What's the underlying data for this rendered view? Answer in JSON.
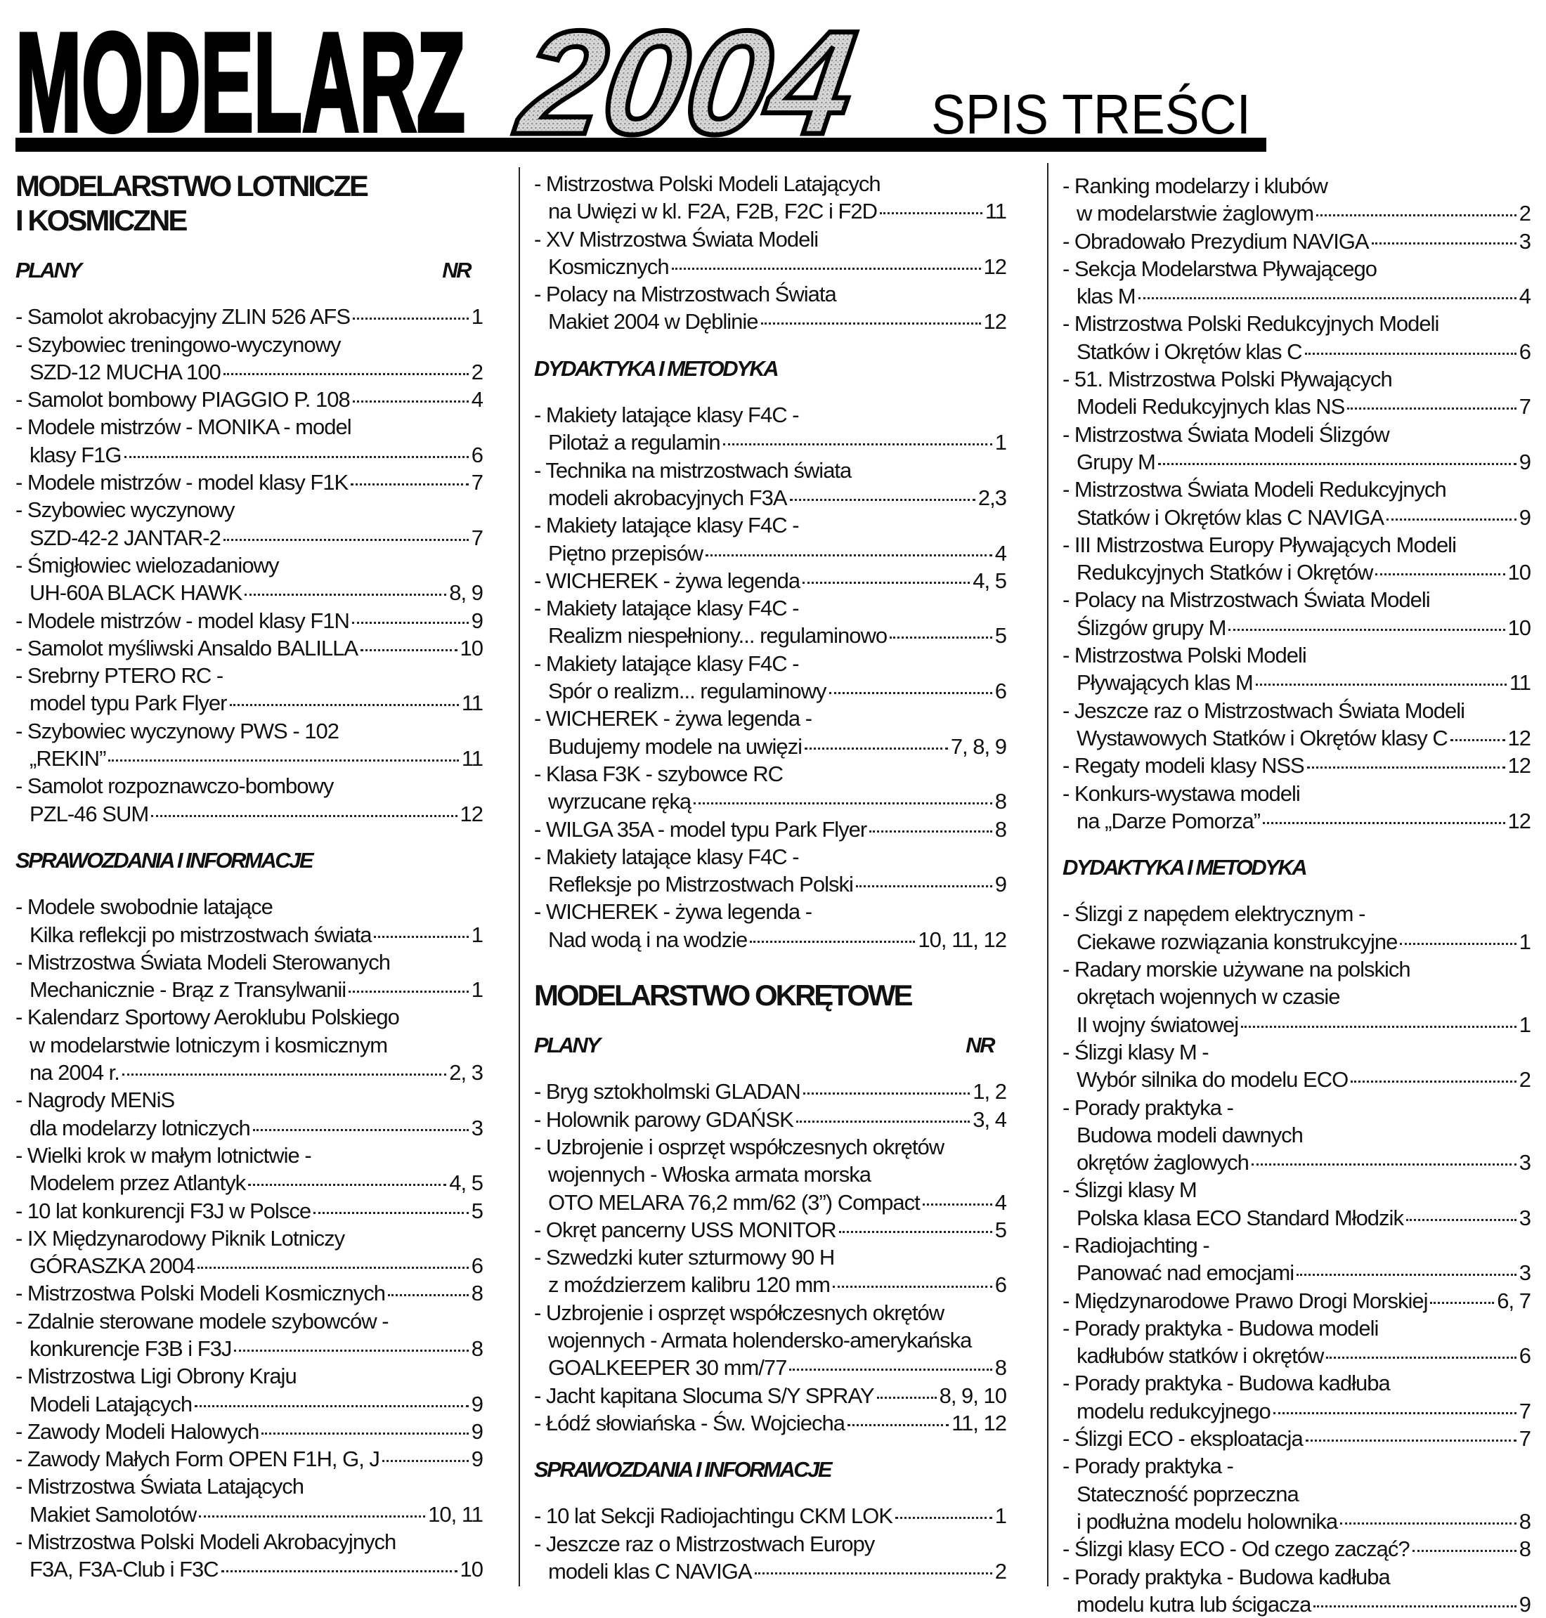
{
  "header": {
    "title": "MODELARZ",
    "year": "2004",
    "subtitle": "SPIS TREŚCI"
  },
  "columns": [
    {
      "blocks": [
        {
          "heading": [
            "MODELARSTWO LOTNICZE",
            "I KOSMICZNE"
          ]
        },
        {
          "subheading": "PLANY",
          "nr": "NR"
        },
        {
          "lines": [
            "- Samolot akrobacyjny ZLIN 526 AFS"
          ],
          "page": "1"
        },
        {
          "lines": [
            "- Szybowiec treningowo-wyczynowy",
            "SZD-12 MUCHA 100"
          ],
          "page": "2"
        },
        {
          "lines": [
            "- Samolot bombowy PIAGGIO P. 108"
          ],
          "page": "4"
        },
        {
          "lines": [
            "- Modele mistrzów - MONIKA - model",
            "klasy F1G"
          ],
          "page": "6"
        },
        {
          "lines": [
            "- Modele mistrzów - model klasy F1K"
          ],
          "page": "7"
        },
        {
          "lines": [
            "- Szybowiec wyczynowy",
            "SZD-42-2 JANTAR-2"
          ],
          "page": "7"
        },
        {
          "lines": [
            "- Śmigłowiec wielozadaniowy",
            "UH-60A BLACK HAWK"
          ],
          "page": "8, 9"
        },
        {
          "lines": [
            "- Modele mistrzów - model klasy F1N"
          ],
          "page": "9"
        },
        {
          "lines": [
            "- Samolot myśliwski Ansaldo BALILLA"
          ],
          "page": "10"
        },
        {
          "lines": [
            "- Srebrny PTERO RC -",
            "model typu Park Flyer"
          ],
          "page": "11"
        },
        {
          "lines": [
            "- Szybowiec wyczynowy PWS - 102",
            "„REKIN”"
          ],
          "page": "11"
        },
        {
          "lines": [
            "- Samolot rozpoznawczo-bombowy",
            "PZL-46 SUM"
          ],
          "page": "12"
        },
        {
          "subheading": "SPRAWOZDANIA I INFORMACJE"
        },
        {
          "lines": [
            "- Modele swobodnie latające",
            "Kilka reflekcji po mistrzostwach świata"
          ],
          "page": "1"
        },
        {
          "lines": [
            "- Mistrzostwa Świata Modeli Sterowanych",
            "Mechanicznie - Brąz z Transylwanii"
          ],
          "page": "1"
        },
        {
          "lines": [
            "- Kalendarz Sportowy Aeroklubu Polskiego",
            "w modelarstwie lotniczym i kosmicznym",
            "na 2004 r."
          ],
          "page": "2, 3"
        },
        {
          "lines": [
            "- Nagrody MENiS",
            "dla modelarzy lotniczych"
          ],
          "page": "3"
        },
        {
          "lines": [
            "- Wielki krok w małym lotnictwie -",
            "Modelem przez Atlantyk"
          ],
          "page": "4, 5"
        },
        {
          "lines": [
            "- 10 lat konkurencji F3J w Polsce"
          ],
          "page": "5"
        },
        {
          "lines": [
            "- IX Międzynarodowy Piknik Lotniczy",
            "GÓRASZKA 2004"
          ],
          "page": "6"
        },
        {
          "lines": [
            "- Mistrzostwa Polski Modeli Kosmicznych"
          ],
          "page": "8"
        },
        {
          "lines": [
            "- Zdalnie sterowane modele szybowców -",
            "konkurencje F3B i F3J"
          ],
          "page": "8"
        },
        {
          "lines": [
            "- Mistrzostwa Ligi Obrony Kraju",
            "Modeli Latających"
          ],
          "page": "9"
        },
        {
          "lines": [
            "- Zawody Modeli Halowych"
          ],
          "page": "9"
        },
        {
          "lines": [
            "- Zawody Małych Form OPEN F1H, G, J"
          ],
          "page": "9"
        },
        {
          "lines": [
            "- Mistrzostwa Świata Latających",
            "Makiet Samolotów"
          ],
          "page": "10, 11"
        },
        {
          "lines": [
            "- Mistrzostwa Polski Modeli Akrobacyjnych",
            "F3A, F3A-Club i F3C"
          ],
          "page": "10"
        }
      ]
    },
    {
      "blocks": [
        {
          "lines": [
            "- Mistrzostwa Polski Modeli Latających",
            "na Uwięzi w kl. F2A, F2B, F2C i F2D"
          ],
          "page": "11"
        },
        {
          "lines": [
            "- XV Mistrzostwa Świata Modeli",
            "Kosmicznych"
          ],
          "page": "12"
        },
        {
          "lines": [
            "- Polacy na Mistrzostwach Świata",
            "Makiet 2004 w Dęblinie"
          ],
          "page": "12"
        },
        {
          "subheading": "DYDAKTYKA I METODYKA"
        },
        {
          "lines": [
            "- Makiety latające klasy F4C -",
            "Pilotaż a regulamin"
          ],
          "page": "1"
        },
        {
          "lines": [
            "- Technika na mistrzostwach świata",
            "modeli akrobacyjnych F3A"
          ],
          "page": "2,3"
        },
        {
          "lines": [
            "- Makiety latające klasy F4C -",
            "Piętno przepisów"
          ],
          "page": "4"
        },
        {
          "lines": [
            "- WICHEREK - żywa legenda"
          ],
          "page": "4, 5"
        },
        {
          "lines": [
            "- Makiety latające klasy F4C -",
            "Realizm niespełniony... regulaminowo"
          ],
          "page": "5"
        },
        {
          "lines": [
            "- Makiety latające klasy F4C -",
            "Spór o realizm... regulaminowy"
          ],
          "page": "6"
        },
        {
          "lines": [
            "- WICHEREK - żywa legenda -",
            "Budujemy modele na uwięzi"
          ],
          "page": "7, 8, 9"
        },
        {
          "lines": [
            "- Klasa F3K - szybowce RC",
            "wyrzucane ręką"
          ],
          "page": "8"
        },
        {
          "lines": [
            "- WILGA 35A - model typu Park Flyer"
          ],
          "page": "8"
        },
        {
          "lines": [
            "- Makiety latające klasy F4C -",
            "Refleksje po Mistrzostwach Polski"
          ],
          "page": "9"
        },
        {
          "lines": [
            "- WICHEREK - żywa legenda -",
            "Nad wodą i na wodzie"
          ],
          "page": "10, 11, 12"
        },
        {
          "heading": [
            "MODELARSTWO OKRĘTOWE"
          ]
        },
        {
          "subheading": "PLANY",
          "nr": "NR"
        },
        {
          "lines": [
            "- Bryg sztokholmski GLADAN"
          ],
          "page": "1, 2"
        },
        {
          "lines": [
            "- Holownik parowy GDAŃSK"
          ],
          "page": "3, 4"
        },
        {
          "lines": [
            "- Uzbrojenie i osprzęt współczesnych okrętów",
            "wojennych - Włoska armata morska",
            "OTO MELARA 76,2 mm/62 (3”) Compact"
          ],
          "page": "4"
        },
        {
          "lines": [
            "- Okręt pancerny USS MONITOR"
          ],
          "page": "5"
        },
        {
          "lines": [
            "- Szwedzki kuter szturmowy 90 H",
            "z moździerzem kalibru 120 mm"
          ],
          "page": "6"
        },
        {
          "lines": [
            "- Uzbrojenie i osprzęt współczesnych okrętów",
            "wojennych - Armata holendersko-amerykańska",
            "GOALKEEPER 30 mm/77"
          ],
          "page": "8"
        },
        {
          "lines": [
            "- Jacht kapitana Slocuma S/Y SPRAY"
          ],
          "page": "8, 9, 10"
        },
        {
          "lines": [
            "- Łódź słowiańska - Św. Wojciecha"
          ],
          "page": "11, 12"
        },
        {
          "subheading": "SPRAWOZDANIA I INFORMACJE"
        },
        {
          "lines": [
            "- 10 lat Sekcji Radiojachtingu CKM LOK"
          ],
          "page": "1"
        },
        {
          "lines": [
            "- Jeszcze raz o Mistrzostwach Europy",
            "modeli klas C NAVIGA"
          ],
          "page": "2"
        }
      ]
    },
    {
      "blocks": [
        {
          "lines": [
            "- Ranking modelarzy i klubów",
            "w modelarstwie żaglowym"
          ],
          "page": "2"
        },
        {
          "lines": [
            "- Obradowało Prezydium NAVIGA"
          ],
          "page": "3"
        },
        {
          "lines": [
            "- Sekcja Modelarstwa Pływającego",
            "klas M"
          ],
          "page": "4"
        },
        {
          "lines": [
            "- Mistrzostwa Polski Redukcyjnych Modeli",
            "Statków i Okrętów klas C"
          ],
          "page": "6"
        },
        {
          "lines": [
            "- 51. Mistrzostwa Polski Pływających",
            "Modeli Redukcyjnych klas NS"
          ],
          "page": "7"
        },
        {
          "lines": [
            "- Mistrzostwa Świata Modeli Ślizgów",
            "Grupy M"
          ],
          "page": "9"
        },
        {
          "lines": [
            "- Mistrzostwa Świata Modeli Redukcyjnych",
            "Statków i Okrętów klas C NAVIGA"
          ],
          "page": "9"
        },
        {
          "lines": [
            "- III Mistrzostwa Europy Pływających Modeli",
            "Redukcyjnych Statków i Okrętów"
          ],
          "page": "10"
        },
        {
          "lines": [
            "- Polacy na Mistrzostwach Świata Modeli",
            "Ślizgów grupy M"
          ],
          "page": "10"
        },
        {
          "lines": [
            "- Mistrzostwa Polski Modeli",
            "Pływających klas M"
          ],
          "page": "11"
        },
        {
          "lines": [
            "- Jeszcze raz o Mistrzostwach Świata Modeli",
            "Wystawowych Statków i Okrętów klasy C"
          ],
          "page": "12"
        },
        {
          "lines": [
            "- Regaty modeli klasy NSS"
          ],
          "page": "12"
        },
        {
          "lines": [
            "- Konkurs-wystawa modeli",
            "na „Darze Pomorza”"
          ],
          "page": "12"
        },
        {
          "subheading": "DYDAKTYKA I METODYKA"
        },
        {
          "lines": [
            "- Ślizgi z napędem elektrycznym -",
            "Ciekawe rozwiązania konstrukcyjne"
          ],
          "page": "1"
        },
        {
          "lines": [
            "- Radary morskie używane na polskich",
            "okrętach wojennych w czasie",
            "II wojny światowej"
          ],
          "page": "1"
        },
        {
          "lines": [
            "- Ślizgi klasy M -",
            "Wybór silnika do modelu ECO"
          ],
          "page": "2"
        },
        {
          "lines": [
            "- Porady praktyka -",
            "Budowa modeli dawnych",
            "okrętów żaglowych"
          ],
          "page": "3"
        },
        {
          "lines": [
            "- Ślizgi klasy M",
            "Polska klasa ECO Standard Młodzik"
          ],
          "page": "3"
        },
        {
          "lines": [
            "- Radiojachting -",
            "Panować nad emocjami"
          ],
          "page": "3"
        },
        {
          "lines": [
            "- Międzynarodowe Prawo Drogi Morskiej"
          ],
          "page": "6, 7"
        },
        {
          "lines": [
            "- Porady praktyka - Budowa modeli",
            "kadłubów statków i okrętów"
          ],
          "page": "6"
        },
        {
          "lines": [
            "- Porady praktyka - Budowa kadłuba",
            "modelu redukcyjnego"
          ],
          "page": "7"
        },
        {
          "lines": [
            "- Ślizgi ECO - eksploatacja"
          ],
          "page": "7"
        },
        {
          "lines": [
            "- Porady praktyka -",
            "Stateczność poprzeczna",
            "i podłużna modelu holownika"
          ],
          "page": "8"
        },
        {
          "lines": [
            "- Ślizgi klasy ECO - Od czego zacząć?"
          ],
          "page": "8"
        },
        {
          "lines": [
            "- Porady praktyka - Budowa kadłuba",
            "modelu kutra lub ścigacza"
          ],
          "page": "9"
        }
      ]
    }
  ]
}
